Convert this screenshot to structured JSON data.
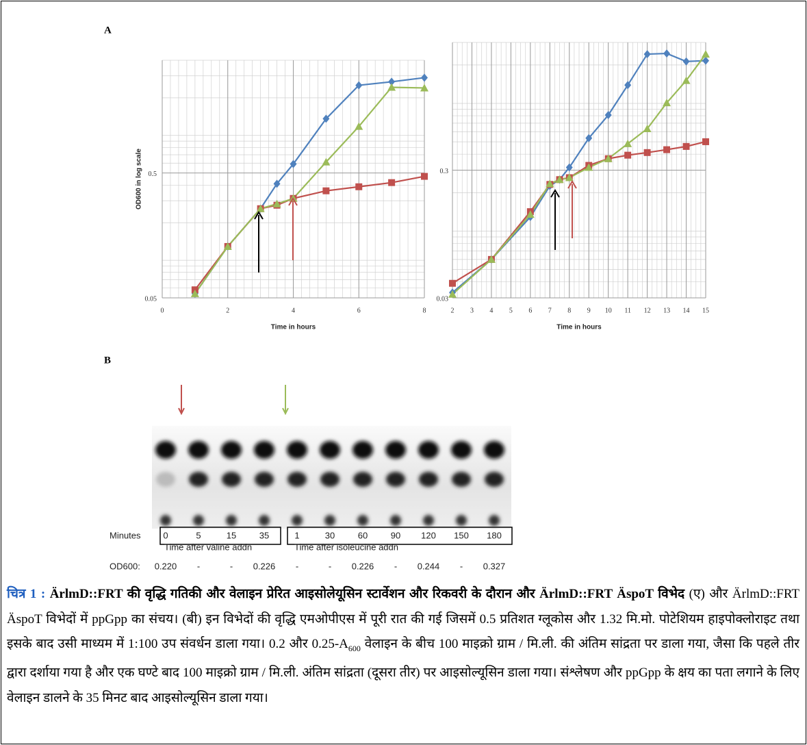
{
  "panel_labels": [
    "A",
    "B"
  ],
  "chart_data": [
    {
      "type": "line",
      "log_y": true,
      "grid": true,
      "ylabel": "OD600 in log scale",
      "xlabel": "Time in hours",
      "xlim": [
        0,
        8
      ],
      "xticks": [
        0,
        2,
        4,
        6,
        8
      ],
      "ylim": [
        0.05,
        4
      ],
      "yticks": [
        0.05,
        0.5
      ],
      "x": [
        1,
        2,
        3,
        3.5,
        4,
        5,
        6,
        7,
        8
      ],
      "series": [
        {
          "color": "#4f81bd",
          "marker": "diamond",
          "values": [
            0.054,
            0.129,
            0.259,
            0.41,
            0.59,
            1.36,
            2.52,
            2.69,
            2.9
          ]
        },
        {
          "color": "#c0504d",
          "marker": "square",
          "values": [
            0.058,
            0.129,
            0.259,
            0.276,
            0.313,
            0.36,
            0.388,
            0.419,
            0.47
          ]
        },
        {
          "color": "#9bbb59",
          "marker": "triangle",
          "values": [
            0.054,
            0.129,
            0.259,
            0.283,
            0.313,
            0.612,
            1.18,
            2.43,
            2.4
          ]
        }
      ]
    },
    {
      "type": "line",
      "log_y": true,
      "grid": true,
      "xlabel": "Time in hours",
      "xlim": [
        2,
        15
      ],
      "xticks": [
        2,
        3,
        4,
        5,
        6,
        7,
        8,
        9,
        10,
        11,
        12,
        13,
        14,
        15
      ],
      "ylim": [
        0.03,
        3
      ],
      "yticks": [
        0.03,
        0.3
      ],
      "x": [
        2,
        4,
        6,
        7,
        7.5,
        8,
        9,
        10,
        11,
        12,
        13,
        14,
        15
      ],
      "series": [
        {
          "color": "#4f81bd",
          "marker": "diamond",
          "values": [
            0.033,
            0.06,
            0.129,
            0.226,
            0.253,
            0.315,
            0.534,
            0.81,
            1.39,
            2.43,
            2.46,
            2.13,
            2.16
          ]
        },
        {
          "color": "#c0504d",
          "marker": "square",
          "values": [
            0.039,
            0.06,
            0.142,
            0.232,
            0.253,
            0.262,
            0.327,
            0.369,
            0.393,
            0.412,
            0.434,
            0.46,
            0.501
          ]
        },
        {
          "color": "#9bbb59",
          "marker": "triangle",
          "values": [
            0.032,
            0.06,
            0.135,
            0.235,
            0.253,
            0.262,
            0.315,
            0.369,
            0.483,
            0.633,
            1.01,
            1.51,
            2.43
          ]
        }
      ]
    }
  ],
  "gel": {
    "row_label": "Minutes",
    "valine_minutes": [
      0,
      5,
      15,
      35
    ],
    "isoleucine_minutes": [
      1,
      30,
      60,
      90,
      120,
      150,
      180
    ],
    "valine_caption": "Time after valine addn",
    "isoleucine_caption": "Time after isoleucine addn",
    "od_label": "OD600:",
    "od_values": [
      "0.220",
      "-",
      "-",
      "0.226",
      "-",
      "-",
      "0.226",
      "-",
      "0.244",
      "-",
      "0.327"
    ]
  },
  "caption": {
    "label": "चित्र 1 :",
    "bold_text": "ÄrlmD::FRT की वृद्धि गतिकी और वेलाइन प्रेरित आइसोलेयूसिन स्टार्वेशन और रिकवरी के दौरान और ÄrlmD::FRT ÄspoT विभेद",
    "text_1": "(ए) और ÄrlmD::FRT ÄspoT विभेदों में ppGpp का संचय। (बी) इन विभेदों की वृद्धि एमओपीएस में पूरी रात की गई जिसमें 0.5 प्रतिशत ग्लूकोस और 1.32 मि.मो. पोटेशियम हाइपोक्लोराइट तथा इसके बाद उसी माध्यम में 1:100 उप संवर्धन डाला गया। 0.2 और 0.25-A",
    "subscript": "600",
    "text_2": "वेलाइन के बीच 100 माइक्रो ग्राम / मि.ली. की अंतिम सांद्रता पर डाला गया, जैसा कि पहले तीर द्वारा दर्शाया गया है और एक घण्टे बाद 100 माइक्रो ग्राम / मि.ली. अंतिम सांद्रता (दूसरा तीर) पर आइसोल्यूसिन डाला गया। संश्लेषण और ppGpp के क्षय का पता लगाने के लिए वेलाइन डालने के 35 मिनट बाद आइसोल्यूसिन डाला गया।"
  }
}
